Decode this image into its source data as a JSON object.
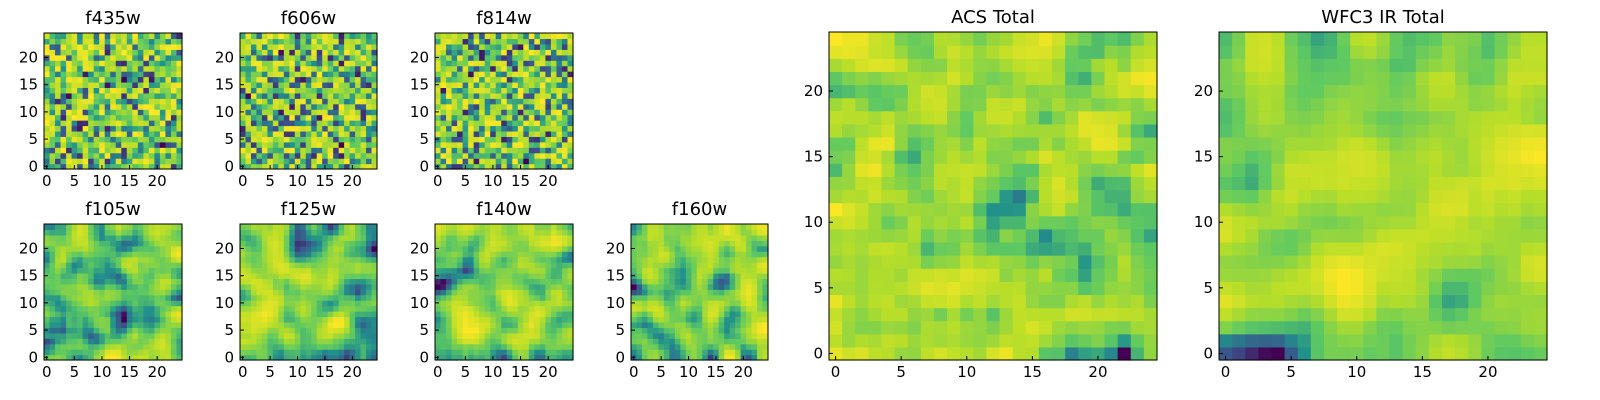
{
  "figure": {
    "background": "#ffffff"
  },
  "colormap": [
    "#440154",
    "#3b528b",
    "#21918c",
    "#5ec962",
    "#b8de29",
    "#fde725"
  ],
  "chart_data": [
    {
      "type": "heatmap",
      "title": "f435w",
      "rows": 25,
      "cols": 25,
      "seed": 11,
      "smooth": 0,
      "xlim": [
        0,
        24
      ],
      "ylim": [
        0,
        24
      ],
      "xticks": [
        0,
        5,
        10,
        15,
        20
      ],
      "yticks": [
        0,
        5,
        10,
        15,
        20
      ],
      "xtick_labels": [
        "0",
        "5",
        "10",
        "15",
        "20"
      ],
      "ytick_labels": [
        "0",
        "5",
        "10",
        "15",
        "20"
      ]
    },
    {
      "type": "heatmap",
      "title": "f606w",
      "rows": 25,
      "cols": 25,
      "seed": 23,
      "smooth": 0,
      "xlim": [
        0,
        24
      ],
      "ylim": [
        0,
        24
      ],
      "xticks": [
        0,
        5,
        10,
        15,
        20
      ],
      "yticks": [
        0,
        5,
        10,
        15,
        20
      ],
      "xtick_labels": [
        "0",
        "5",
        "10",
        "15",
        "20"
      ],
      "ytick_labels": [
        "0",
        "5",
        "10",
        "15",
        "20"
      ]
    },
    {
      "type": "heatmap",
      "title": "f814w",
      "rows": 25,
      "cols": 25,
      "seed": 37,
      "smooth": 0,
      "xlim": [
        0,
        24
      ],
      "ylim": [
        0,
        24
      ],
      "xticks": [
        0,
        5,
        10,
        15,
        20
      ],
      "yticks": [
        0,
        5,
        10,
        15,
        20
      ],
      "xtick_labels": [
        "0",
        "5",
        "10",
        "15",
        "20"
      ],
      "ytick_labels": [
        "0",
        "5",
        "10",
        "15",
        "20"
      ]
    },
    {
      "type": "heatmap",
      "title": "f105w",
      "rows": 25,
      "cols": 25,
      "seed": 41,
      "smooth": 2,
      "xlim": [
        0,
        24
      ],
      "ylim": [
        0,
        24
      ],
      "xticks": [
        0,
        5,
        10,
        15,
        20
      ],
      "yticks": [
        0,
        5,
        10,
        15,
        20
      ],
      "xtick_labels": [
        "0",
        "5",
        "10",
        "15",
        "20"
      ],
      "ytick_labels": [
        "0",
        "5",
        "10",
        "15",
        "20"
      ]
    },
    {
      "type": "heatmap",
      "title": "f125w",
      "rows": 25,
      "cols": 25,
      "seed": 53,
      "smooth": 2,
      "xlim": [
        0,
        24
      ],
      "ylim": [
        0,
        24
      ],
      "xticks": [
        0,
        5,
        10,
        15,
        20
      ],
      "yticks": [
        0,
        5,
        10,
        15,
        20
      ],
      "xtick_labels": [
        "0",
        "5",
        "10",
        "15",
        "20"
      ],
      "ytick_labels": [
        "0",
        "5",
        "10",
        "15",
        "20"
      ]
    },
    {
      "type": "heatmap",
      "title": "f140w",
      "rows": 25,
      "cols": 25,
      "seed": 67,
      "smooth": 2,
      "xlim": [
        0,
        24
      ],
      "ylim": [
        0,
        24
      ],
      "xticks": [
        0,
        5,
        10,
        15,
        20
      ],
      "yticks": [
        0,
        5,
        10,
        15,
        20
      ],
      "xtick_labels": [
        "0",
        "5",
        "10",
        "15",
        "20"
      ],
      "ytick_labels": [
        "0",
        "5",
        "10",
        "15",
        "20"
      ]
    },
    {
      "type": "heatmap",
      "title": "f160w",
      "rows": 25,
      "cols": 25,
      "seed": 79,
      "smooth": 2,
      "xlim": [
        0,
        24
      ],
      "ylim": [
        0,
        24
      ],
      "xticks": [
        0,
        5,
        10,
        15,
        20
      ],
      "yticks": [
        0,
        5,
        10,
        15,
        20
      ],
      "xtick_labels": [
        "0",
        "5",
        "10",
        "15",
        "20"
      ],
      "ytick_labels": [
        "0",
        "5",
        "10",
        "15",
        "20"
      ]
    },
    {
      "type": "heatmap",
      "title": "ACS Total",
      "rows": 25,
      "cols": 25,
      "seed": 83,
      "smooth": 1,
      "xlim": [
        0,
        24
      ],
      "ylim": [
        0,
        24
      ],
      "xticks": [
        0,
        5,
        10,
        15,
        20
      ],
      "yticks": [
        0,
        5,
        10,
        15,
        20
      ],
      "xtick_labels": [
        "0",
        "5",
        "10",
        "15",
        "20"
      ],
      "ytick_labels": [
        "0",
        "5",
        "10",
        "15",
        "20"
      ]
    },
    {
      "type": "heatmap",
      "title": "WFC3 IR Total",
      "rows": 25,
      "cols": 25,
      "seed": 97,
      "smooth": 2,
      "xlim": [
        0,
        24
      ],
      "ylim": [
        0,
        24
      ],
      "xticks": [
        0,
        5,
        10,
        15,
        20
      ],
      "yticks": [
        0,
        5,
        10,
        15,
        20
      ],
      "xtick_labels": [
        "0",
        "5",
        "10",
        "15",
        "20"
      ],
      "ytick_labels": [
        "0",
        "5",
        "10",
        "15",
        "20"
      ]
    }
  ]
}
